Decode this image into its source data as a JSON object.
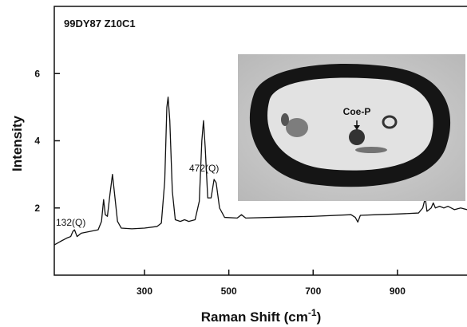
{
  "chart_data": {
    "type": "line",
    "xlabel": {
      "main": "Raman Shift (cm",
      "sup": "-1",
      "end": ")"
    },
    "ylabel": "Intensity",
    "annotations": [
      "99DY87 Z10C1",
      "132(Q)",
      "472(Q)",
      "Coe-P"
    ],
    "color": "#111111",
    "xlim": [
      86,
      1065
    ],
    "ylim": [
      0,
      8
    ],
    "xticks": [
      300,
      500,
      700,
      900
    ],
    "yticks": [
      2,
      4,
      6
    ],
    "x": [
      86,
      100,
      115,
      125,
      130,
      134,
      140,
      150,
      170,
      190,
      198,
      203,
      207,
      212,
      218,
      224,
      230,
      236,
      245,
      270,
      300,
      330,
      340,
      348,
      353,
      356,
      360,
      366,
      373,
      385,
      395,
      405,
      420,
      430,
      436,
      440,
      444,
      450,
      458,
      465,
      470,
      478,
      490,
      520,
      530,
      540,
      600,
      700,
      790,
      800,
      806,
      812,
      850,
      900,
      950,
      960,
      966,
      970,
      980,
      985,
      990,
      1000,
      1010,
      1020,
      1035,
      1050,
      1065
    ],
    "values": [
      0.9,
      1.0,
      1.1,
      1.15,
      1.3,
      1.35,
      1.15,
      1.25,
      1.3,
      1.35,
      1.6,
      2.25,
      1.8,
      1.75,
      2.4,
      3.0,
      2.3,
      1.6,
      1.4,
      1.38,
      1.4,
      1.45,
      1.55,
      2.8,
      5.0,
      5.3,
      4.6,
      2.5,
      1.65,
      1.6,
      1.65,
      1.6,
      1.65,
      2.2,
      4.0,
      4.6,
      3.8,
      2.3,
      2.3,
      2.85,
      2.75,
      2.0,
      1.72,
      1.7,
      1.8,
      1.7,
      1.72,
      1.75,
      1.8,
      1.72,
      1.58,
      1.78,
      1.8,
      1.82,
      1.85,
      2.0,
      2.3,
      1.9,
      2.0,
      2.15,
      2.0,
      2.05,
      2.0,
      2.05,
      1.95,
      2.0,
      1.95
    ]
  }
}
